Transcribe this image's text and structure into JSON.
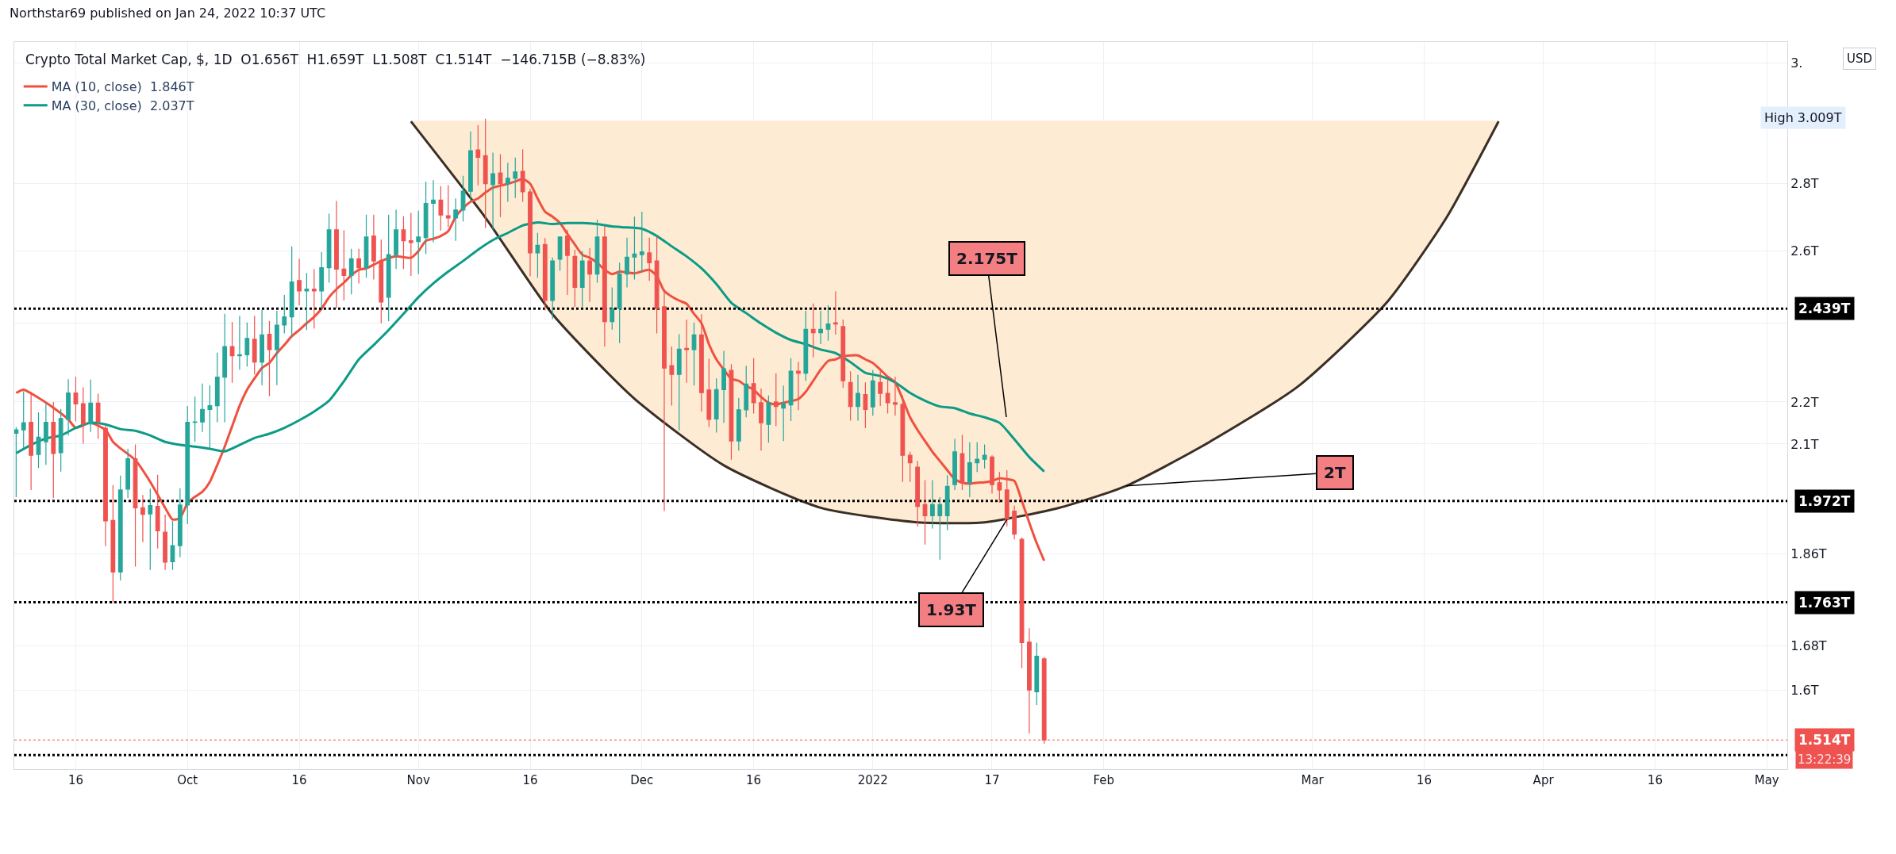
{
  "chart_data": {
    "type": "candlestick",
    "title": "Crypto Total Market Cap, $, 1D  O1.656T  H1.659T  L1.508T  C1.514T  −146.715B (−8.83%)",
    "colors": [
      "#26a69a",
      "#26a69a",
      "#ef5350",
      "#26a69a",
      "#26a69a",
      "#ef5350",
      "#26a69a",
      "#26a69a",
      "#ef5350",
      "#ef5350",
      "#26a69a",
      "#ef5350",
      "#ef5350",
      "#ef5350",
      "#26a69a",
      "#26a69a",
      "#ef5350",
      "#ef5350",
      "#26a69a",
      "#ef5350",
      "#ef5350",
      "#26a69a",
      "#26a69a",
      "#26a69a",
      "#26a69a",
      "#26a69a",
      "#26a69a",
      "#26a69a",
      "#26a69a",
      "#ef5350",
      "#26a69a",
      "#26a69a",
      "#ef5350",
      "#26a69a",
      "#ef5350",
      "#26a69a",
      "#26a69a",
      "#26a69a",
      "#ef5350",
      "#26a69a",
      "#ef5350",
      "#26a69a",
      "#26a69a",
      "#ef5350",
      "#ef5350",
      "#26a69a",
      "#ef5350",
      "#26a69a",
      "#ef5350",
      "#ef5350",
      "#26a69a",
      "#26a69a",
      "#ef5350",
      "#ef5350",
      "#26a69a",
      "#26a69a",
      "#26a69a",
      "#ef5350",
      "#ef5350",
      "#26a69a",
      "#26a69a",
      "#26a69a",
      "#ef5350",
      "#ef5350",
      "#26a69a",
      "#ef5350",
      "#26a69a",
      "#26a69a",
      "#ef5350",
      "#ef5350",
      "#26a69a",
      "#ef5350",
      "#26a69a",
      "#26a69a",
      "#ef5350",
      "#ef5350",
      "#26a69a",
      "#ef5350",
      "#26a69a",
      "#ef5350",
      "#26a69a",
      "#26a69a",
      "#26a69a",
      "#26a69a",
      "#26a69a",
      "#ef5350",
      "#ef5350",
      "#ef5350",
      "#ef5350",
      "#26a69a",
      "#ef5350",
      "#26a69a",
      "#ef5350",
      "#ef5350",
      "#26a69a",
      "#26a69a",
      "#ef5350",
      "#26a69a",
      "#26a69a",
      "#ef5350",
      "#ef5350",
      "#26a69a",
      "#ef5350",
      "#26a69a",
      "#26a69a",
      "#ef5350",
      "#26a69a",
      "#ef5350",
      "#26a69a",
      "#26a69a",
      "#ef5350",
      "#ef5350",
      "#ef5350",
      "#26a69a",
      "#ef5350",
      "#26a69a",
      "#ef5350",
      "#ef5350",
      "#ef5350",
      "#ef5350",
      "#ef5350",
      "#ef5350",
      "#ef5350",
      "#26a69a",
      "#26a69a",
      "#26a69a",
      "#26a69a",
      "#ef5350",
      "#26a69a",
      "#26a69a",
      "#26a69a",
      "#ef5350",
      "#ef5350",
      "#ef5350",
      "#ef5350",
      "#ef5350",
      "#ef5350",
      "#26a69a",
      "#ef5350"
    ],
    "x": [
      "2021-09-08",
      "2021-09-09",
      "2021-09-10",
      "2021-09-11",
      "2021-09-12",
      "2021-09-13",
      "2021-09-14",
      "2021-09-15",
      "2021-09-16",
      "2021-09-17",
      "2021-09-18",
      "2021-09-19",
      "2021-09-20",
      "2021-09-21",
      "2021-09-22",
      "2021-09-23",
      "2021-09-24",
      "2021-09-25",
      "2021-09-26",
      "2021-09-27",
      "2021-09-28",
      "2021-09-29",
      "2021-09-30",
      "2021-10-01",
      "2021-10-02",
      "2021-10-03",
      "2021-10-04",
      "2021-10-05",
      "2021-10-06",
      "2021-10-07",
      "2021-10-08",
      "2021-10-09",
      "2021-10-10",
      "2021-10-11",
      "2021-10-12",
      "2021-10-13",
      "2021-10-14",
      "2021-10-15",
      "2021-10-16",
      "2021-10-17",
      "2021-10-18",
      "2021-10-19",
      "2021-10-20",
      "2021-10-21",
      "2021-10-22",
      "2021-10-23",
      "2021-10-24",
      "2021-10-25",
      "2021-10-26",
      "2021-10-27",
      "2021-10-28",
      "2021-10-29",
      "2021-10-30",
      "2021-10-31",
      "2021-11-01",
      "2021-11-02",
      "2021-11-03",
      "2021-11-04",
      "2021-11-05",
      "2021-11-06",
      "2021-11-07",
      "2021-11-08",
      "2021-11-09",
      "2021-11-10",
      "2021-11-11",
      "2021-11-12",
      "2021-11-13",
      "2021-11-14",
      "2021-11-15",
      "2021-11-16",
      "2021-11-17",
      "2021-11-18",
      "2021-11-19",
      "2021-11-20",
      "2021-11-21",
      "2021-11-22",
      "2021-11-23",
      "2021-11-24",
      "2021-11-25",
      "2021-11-26",
      "2021-11-27",
      "2021-11-28",
      "2021-11-29",
      "2021-11-30",
      "2021-12-01",
      "2021-12-02",
      "2021-12-03",
      "2021-12-04",
      "2021-12-05",
      "2021-12-06",
      "2021-12-07",
      "2021-12-08",
      "2021-12-09",
      "2021-12-10",
      "2021-12-11",
      "2021-12-12",
      "2021-12-13",
      "2021-12-14",
      "2021-12-15",
      "2021-12-16",
      "2021-12-17",
      "2021-12-18",
      "2021-12-19",
      "2021-12-20",
      "2021-12-21",
      "2021-12-22",
      "2021-12-23",
      "2021-12-24",
      "2021-12-25",
      "2021-12-26",
      "2021-12-27",
      "2021-12-28",
      "2021-12-29",
      "2021-12-30",
      "2021-12-31",
      "2022-01-01",
      "2022-01-02",
      "2022-01-03",
      "2022-01-04",
      "2022-01-05",
      "2022-01-06",
      "2022-01-07",
      "2022-01-08",
      "2022-01-09",
      "2022-01-10",
      "2022-01-11",
      "2022-01-12",
      "2022-01-13",
      "2022-01-14",
      "2022-01-15",
      "2022-01-16",
      "2022-01-17",
      "2022-01-18",
      "2022-01-19",
      "2022-01-20",
      "2022-01-21",
      "2022-01-22",
      "2022-01-23",
      "2022-01-24"
    ],
    "ohlc": [
      [
        2.125,
        2.14,
        1.98,
        2.133
      ],
      [
        2.133,
        2.226,
        2.09,
        2.15
      ],
      [
        2.151,
        2.225,
        1.996,
        2.074
      ],
      [
        2.076,
        2.175,
        2.045,
        2.116
      ],
      [
        2.105,
        2.197,
        2.052,
        2.151
      ],
      [
        2.151,
        2.2,
        1.978,
        2.078
      ],
      [
        2.08,
        2.183,
        2.037,
        2.16
      ],
      [
        2.158,
        2.256,
        2.12,
        2.222
      ],
      [
        2.222,
        2.262,
        2.153,
        2.195
      ],
      [
        2.196,
        2.236,
        2.101,
        2.147
      ],
      [
        2.147,
        2.255,
        2.128,
        2.197
      ],
      [
        2.197,
        2.22,
        2.112,
        2.153
      ],
      [
        2.137,
        2.145,
        1.876,
        1.929
      ],
      [
        1.93,
        2.007,
        1.761,
        1.823
      ],
      [
        1.823,
        2.028,
        1.806,
        1.996
      ],
      [
        1.998,
        2.089,
        1.978,
        2.066
      ],
      [
        2.066,
        2.099,
        1.834,
        1.957
      ],
      [
        1.957,
        1.985,
        1.884,
        1.943
      ],
      [
        1.944,
        1.999,
        1.827,
        1.962
      ],
      [
        1.96,
        2.03,
        1.871,
        1.908
      ],
      [
        1.905,
        1.943,
        1.827,
        1.843
      ],
      [
        1.844,
        1.929,
        1.827,
        1.877
      ],
      [
        1.877,
        2.0,
        1.853,
        1.963
      ],
      [
        1.963,
        2.19,
        1.922,
        2.151
      ],
      [
        2.151,
        2.213,
        2.105,
        2.152
      ],
      [
        2.152,
        2.245,
        2.128,
        2.182
      ],
      [
        2.182,
        2.241,
        2.09,
        2.191
      ],
      [
        2.191,
        2.323,
        2.151,
        2.261
      ],
      [
        2.261,
        2.425,
        2.151,
        2.339
      ],
      [
        2.339,
        2.403,
        2.247,
        2.315
      ],
      [
        2.315,
        2.42,
        2.28,
        2.318
      ],
      [
        2.318,
        2.402,
        2.288,
        2.36
      ],
      [
        2.358,
        2.42,
        2.268,
        2.299
      ],
      [
        2.299,
        2.436,
        2.241,
        2.369
      ],
      [
        2.371,
        2.406,
        2.214,
        2.331
      ],
      [
        2.331,
        2.433,
        2.241,
        2.395
      ],
      [
        2.395,
        2.476,
        2.373,
        2.417
      ],
      [
        2.417,
        2.613,
        2.363,
        2.512
      ],
      [
        2.516,
        2.577,
        2.448,
        2.487
      ],
      [
        2.487,
        2.537,
        2.382,
        2.492
      ],
      [
        2.492,
        2.548,
        2.386,
        2.487
      ],
      [
        2.487,
        2.596,
        2.44,
        2.552
      ],
      [
        2.552,
        2.709,
        2.51,
        2.661
      ],
      [
        2.661,
        2.747,
        2.44,
        2.548
      ],
      [
        2.548,
        2.66,
        2.461,
        2.53
      ],
      [
        2.53,
        2.606,
        2.478,
        2.577
      ],
      [
        2.577,
        2.606,
        2.508,
        2.552
      ],
      [
        2.552,
        2.706,
        2.524,
        2.64
      ],
      [
        2.643,
        2.706,
        2.519,
        2.571
      ],
      [
        2.571,
        2.633,
        2.4,
        2.457
      ],
      [
        2.47,
        2.706,
        2.405,
        2.589
      ],
      [
        2.589,
        2.721,
        2.548,
        2.661
      ],
      [
        2.661,
        2.701,
        2.548,
        2.629
      ],
      [
        2.629,
        2.711,
        2.529,
        2.624
      ],
      [
        2.627,
        2.718,
        2.534,
        2.64
      ],
      [
        2.638,
        2.806,
        2.591,
        2.74
      ],
      [
        2.74,
        2.811,
        2.624,
        2.75
      ],
      [
        2.75,
        2.793,
        2.659,
        2.705
      ],
      [
        2.703,
        2.796,
        2.669,
        2.696
      ],
      [
        2.696,
        2.755,
        2.629,
        2.72
      ],
      [
        2.72,
        2.825,
        2.686,
        2.777
      ],
      [
        2.777,
        2.967,
        2.745,
        2.904
      ],
      [
        2.907,
        2.988,
        2.795,
        2.883
      ],
      [
        2.888,
        3.009,
        2.666,
        2.8
      ],
      [
        2.797,
        2.898,
        2.661,
        2.831
      ],
      [
        2.834,
        2.893,
        2.699,
        2.8
      ],
      [
        2.8,
        2.866,
        2.745,
        2.817
      ],
      [
        2.817,
        2.882,
        2.756,
        2.837
      ],
      [
        2.839,
        2.909,
        2.745,
        2.775
      ],
      [
        2.775,
        2.785,
        2.528,
        2.594
      ],
      [
        2.594,
        2.652,
        2.524,
        2.616
      ],
      [
        2.618,
        2.637,
        2.434,
        2.461
      ],
      [
        2.461,
        2.581,
        2.411,
        2.571
      ],
      [
        2.576,
        2.642,
        2.543,
        2.64
      ],
      [
        2.643,
        2.661,
        2.476,
        2.587
      ],
      [
        2.584,
        2.603,
        2.444,
        2.497
      ],
      [
        2.497,
        2.599,
        2.444,
        2.571
      ],
      [
        2.571,
        2.608,
        2.457,
        2.534
      ],
      [
        2.534,
        2.691,
        2.51,
        2.64
      ],
      [
        2.64,
        2.671,
        2.339,
        2.404
      ],
      [
        2.404,
        2.497,
        2.383,
        2.439
      ],
      [
        2.439,
        2.566,
        2.348,
        2.534
      ],
      [
        2.534,
        2.638,
        2.497,
        2.582
      ],
      [
        2.582,
        2.7,
        2.519,
        2.591
      ],
      [
        2.589,
        2.715,
        2.538,
        2.597
      ],
      [
        2.594,
        2.638,
        2.515,
        2.566
      ],
      [
        2.571,
        2.642,
        2.373,
        2.439
      ],
      [
        2.444,
        2.492,
        1.95,
        2.284
      ],
      [
        2.29,
        2.339,
        2.191,
        2.268
      ],
      [
        2.268,
        2.371,
        2.132,
        2.332
      ],
      [
        2.334,
        2.41,
        2.247,
        2.331
      ],
      [
        2.331,
        2.402,
        2.24,
        2.369
      ],
      [
        2.369,
        2.424,
        2.177,
        2.223
      ],
      [
        2.229,
        2.308,
        2.14,
        2.158
      ],
      [
        2.159,
        2.258,
        2.127,
        2.23
      ],
      [
        2.23,
        2.328,
        2.15,
        2.282
      ],
      [
        2.278,
        2.294,
        2.064,
        2.107
      ],
      [
        2.107,
        2.21,
        2.085,
        2.181
      ],
      [
        2.181,
        2.29,
        2.163,
        2.244
      ],
      [
        2.245,
        2.309,
        2.172,
        2.198
      ],
      [
        2.198,
        2.233,
        2.085,
        2.15
      ],
      [
        2.146,
        2.216,
        2.103,
        2.198
      ],
      [
        2.2,
        2.271,
        2.142,
        2.189
      ],
      [
        2.185,
        2.24,
        2.107,
        2.196
      ],
      [
        2.193,
        2.309,
        2.154,
        2.276
      ],
      [
        2.276,
        2.3,
        2.18,
        2.271
      ],
      [
        2.271,
        2.433,
        2.252,
        2.384
      ],
      [
        2.384,
        2.453,
        2.311,
        2.375
      ],
      [
        2.375,
        2.433,
        2.345,
        2.384
      ],
      [
        2.384,
        2.448,
        2.354,
        2.398
      ],
      [
        2.401,
        2.486,
        2.37,
        2.398
      ],
      [
        2.391,
        2.41,
        2.235,
        2.252
      ],
      [
        2.248,
        2.276,
        2.155,
        2.189
      ],
      [
        2.189,
        2.267,
        2.155,
        2.221
      ],
      [
        2.218,
        2.248,
        2.137,
        2.182
      ],
      [
        2.188,
        2.279,
        2.167,
        2.252
      ],
      [
        2.248,
        2.276,
        2.19,
        2.221
      ],
      [
        2.221,
        2.257,
        2.172,
        2.198
      ],
      [
        2.198,
        2.262,
        2.167,
        2.194
      ],
      [
        2.194,
        2.216,
        2.014,
        2.074
      ],
      [
        2.074,
        2.082,
        2.014,
        2.057
      ],
      [
        2.047,
        2.061,
        1.917,
        1.96
      ],
      [
        1.964,
        2.018,
        1.879,
        1.94
      ],
      [
        1.94,
        2.018,
        1.913,
        1.964
      ],
      [
        1.94,
        1.98,
        1.848,
        1.964
      ],
      [
        1.94,
        2.029,
        1.909,
        2.004
      ],
      [
        2.008,
        2.112,
        1.996,
        2.082
      ],
      [
        2.078,
        2.121,
        1.996,
        2.012
      ],
      [
        2.012,
        2.104,
        1.98,
        2.057
      ],
      [
        2.057,
        2.104,
        2.036,
        2.065
      ],
      [
        2.065,
        2.099,
        2.044,
        2.074
      ],
      [
        2.07,
        2.074,
        1.988,
        2.008
      ],
      [
        2.012,
        2.036,
        1.968,
        1.996
      ],
      [
        1.996,
        2.04,
        1.917,
        1.932
      ],
      [
        1.95,
        1.962,
        1.89,
        1.901
      ],
      [
        1.89,
        1.894,
        1.639,
        1.686
      ],
      [
        1.687,
        1.713,
        1.525,
        1.6
      ],
      [
        1.597,
        1.686,
        1.574,
        1.661
      ],
      [
        1.656,
        1.659,
        1.508,
        1.514
      ]
    ],
    "series": [
      {
        "type": "line",
        "color": "#3b2f25",
        "x": [
          "2021-10-31",
          "2021-11-10",
          "2021-11-19",
          "2021-11-30",
          "2021-12-12",
          "2021-12-25",
          "2022-01-07",
          "2022-01-16",
          "2022-01-26",
          "2022-02-04",
          "2022-02-14",
          "2022-02-27",
          "2022-03-11",
          "2022-03-19",
          "2022-03-26"
        ],
        "values": [
          3.0,
          2.697,
          2.424,
          2.208,
          2.051,
          1.957,
          1.926,
          1.926,
          1.957,
          2.005,
          2.093,
          2.237,
          2.456,
          2.697,
          3.0
        ]
      },
      {
        "type": "area",
        "color": "#fdebd3",
        "x": [
          "2021-10-31",
          "2021-11-10",
          "2021-11-19",
          "2021-11-30",
          "2021-12-12",
          "2021-12-25",
          "2022-01-07",
          "2022-01-16",
          "2022-01-26",
          "2022-02-04",
          "2022-02-14",
          "2022-02-27",
          "2022-03-11",
          "2022-03-19",
          "2022-03-26"
        ],
        "values": [
          3.0,
          3.0,
          3.0,
          3.0,
          3.0,
          3.0,
          3.0,
          3.0,
          3.0,
          3.0,
          3.0,
          3.0,
          3.0,
          3.0,
          3.0
        ]
      },
      {
        "type": "line",
        "name": "MA (10, close)  1.846T",
        "color": "#f0513f",
        "x": [
          "2021-09-08",
          "2021-09-09",
          "2021-09-11",
          "2021-09-13",
          "2021-09-15",
          "2021-09-16",
          "2021-09-18",
          "2021-09-20",
          "2021-09-21",
          "2021-09-22",
          "2021-09-24",
          "2021-09-26",
          "2021-09-28",
          "2021-09-29",
          "2021-09-30",
          "2021-10-01",
          "2021-10-02",
          "2021-10-03",
          "2021-10-04",
          "2021-10-05",
          "2021-10-06",
          "2021-10-07",
          "2021-10-08",
          "2021-10-09",
          "2021-10-10",
          "2021-10-11",
          "2021-10-12",
          "2021-10-13",
          "2021-10-14",
          "2021-10-15",
          "2021-10-16",
          "2021-10-17",
          "2021-10-18",
          "2021-10-19",
          "2021-10-20",
          "2021-10-21",
          "2021-10-22",
          "2021-10-23",
          "2021-10-24",
          "2021-10-25",
          "2021-10-27",
          "2021-10-29",
          "2021-10-31",
          "2021-11-01",
          "2021-11-02",
          "2021-11-03",
          "2021-11-04",
          "2021-11-05",
          "2021-11-06",
          "2021-11-07",
          "2021-11-08",
          "2021-11-09",
          "2021-11-10",
          "2021-11-11",
          "2021-11-12",
          "2021-11-13",
          "2021-11-14",
          "2021-11-15",
          "2021-11-16",
          "2021-11-17",
          "2021-11-18",
          "2021-11-19",
          "2021-11-20",
          "2021-11-21",
          "2021-11-22",
          "2021-11-23",
          "2021-11-24",
          "2021-11-25",
          "2021-11-26",
          "2021-11-27",
          "2021-11-28",
          "2021-11-30",
          "2021-12-02",
          "2021-12-03",
          "2021-12-04",
          "2021-12-05",
          "2021-12-06",
          "2021-12-07",
          "2021-12-08",
          "2021-12-09",
          "2021-12-10",
          "2021-12-11",
          "2021-12-12",
          "2021-12-13",
          "2021-12-14",
          "2021-12-15",
          "2021-12-16",
          "2021-12-17",
          "2021-12-18",
          "2021-12-19",
          "2021-12-20",
          "2021-12-21",
          "2021-12-22",
          "2021-12-23",
          "2021-12-24",
          "2021-12-25",
          "2021-12-26",
          "2021-12-27",
          "2021-12-28",
          "2021-12-29",
          "2021-12-30",
          "2021-12-31",
          "2022-01-01",
          "2022-01-02",
          "2022-01-03",
          "2022-01-04",
          "2022-01-05",
          "2022-01-06",
          "2022-01-07",
          "2022-01-08",
          "2022-01-09",
          "2022-01-10",
          "2022-01-11",
          "2022-01-12",
          "2022-01-13",
          "2022-01-14",
          "2022-01-15",
          "2022-01-16",
          "2022-01-17",
          "2022-01-18",
          "2022-01-19",
          "2022-01-20",
          "2022-01-21",
          "2022-01-22",
          "2022-01-23",
          "2022-01-24"
        ],
        "values": [
          2.222,
          2.23,
          2.21,
          2.186,
          2.158,
          2.138,
          2.15,
          2.133,
          2.105,
          2.09,
          2.063,
          2.014,
          1.957,
          1.932,
          1.935,
          1.967,
          1.981,
          1.992,
          2.014,
          2.052,
          2.094,
          2.142,
          2.191,
          2.23,
          2.258,
          2.284,
          2.297,
          2.322,
          2.343,
          2.366,
          2.382,
          2.4,
          2.417,
          2.439,
          2.47,
          2.492,
          2.51,
          2.531,
          2.546,
          2.55,
          2.571,
          2.584,
          2.58,
          2.599,
          2.629,
          2.635,
          2.643,
          2.657,
          2.7,
          2.726,
          2.745,
          2.755,
          2.773,
          2.788,
          2.794,
          2.8,
          2.807,
          2.815,
          2.8,
          2.755,
          2.715,
          2.7,
          2.681,
          2.649,
          2.618,
          2.589,
          2.58,
          2.566,
          2.546,
          2.534,
          2.541,
          2.536,
          2.546,
          2.528,
          2.487,
          2.472,
          2.461,
          2.452,
          2.425,
          2.4,
          2.345,
          2.306,
          2.28,
          2.257,
          2.252,
          2.239,
          2.23,
          2.212,
          2.198,
          2.194,
          2.198,
          2.202,
          2.207,
          2.225,
          2.252,
          2.28,
          2.302,
          2.306,
          2.314,
          2.316,
          2.316,
          2.306,
          2.297,
          2.28,
          2.262,
          2.248,
          2.207,
          2.163,
          2.133,
          2.107,
          2.082,
          2.061,
          2.04,
          2.02,
          2.012,
          2.01,
          2.012,
          2.013,
          2.016,
          2.022,
          2.02,
          2.016,
          1.972,
          1.925,
          1.882,
          1.846
        ]
      },
      {
        "type": "line",
        "name": "MA (30, close)  2.037T",
        "color": "#0b9b86",
        "x": [
          "2021-09-08",
          "2021-09-10",
          "2021-09-12",
          "2021-09-14",
          "2021-09-16",
          "2021-09-18",
          "2021-09-20",
          "2021-09-22",
          "2021-09-24",
          "2021-09-26",
          "2021-09-28",
          "2021-09-30",
          "2021-10-02",
          "2021-10-04",
          "2021-10-06",
          "2021-10-08",
          "2021-10-10",
          "2021-10-12",
          "2021-10-14",
          "2021-10-16",
          "2021-10-18",
          "2021-10-20",
          "2021-10-22",
          "2021-10-24",
          "2021-10-26",
          "2021-10-28",
          "2021-10-30",
          "2021-11-01",
          "2021-11-03",
          "2021-11-05",
          "2021-11-07",
          "2021-11-09",
          "2021-11-11",
          "2021-11-13",
          "2021-11-15",
          "2021-11-17",
          "2021-11-19",
          "2021-11-21",
          "2021-11-23",
          "2021-11-25",
          "2021-11-27",
          "2021-11-29",
          "2021-12-01",
          "2021-12-03",
          "2021-12-05",
          "2021-12-07",
          "2021-12-09",
          "2021-12-11",
          "2021-12-13",
          "2021-12-15",
          "2021-12-17",
          "2021-12-19",
          "2021-12-21",
          "2021-12-23",
          "2021-12-25",
          "2021-12-27",
          "2021-12-29",
          "2021-12-31",
          "2022-01-02",
          "2022-01-04",
          "2022-01-06",
          "2022-01-08",
          "2022-01-10",
          "2022-01-12",
          "2022-01-14",
          "2022-01-16",
          "2022-01-18",
          "2022-01-20",
          "2022-01-22",
          "2022-01-24"
        ],
        "values": [
          2.079,
          2.098,
          2.113,
          2.12,
          2.138,
          2.15,
          2.146,
          2.135,
          2.131,
          2.12,
          2.105,
          2.098,
          2.094,
          2.089,
          2.083,
          2.098,
          2.114,
          2.124,
          2.138,
          2.156,
          2.177,
          2.203,
          2.251,
          2.306,
          2.343,
          2.382,
          2.425,
          2.47,
          2.508,
          2.541,
          2.571,
          2.603,
          2.631,
          2.652,
          2.674,
          2.683,
          2.678,
          2.681,
          2.681,
          2.678,
          2.671,
          2.668,
          2.664,
          2.643,
          2.613,
          2.584,
          2.55,
          2.506,
          2.455,
          2.427,
          2.399,
          2.375,
          2.356,
          2.345,
          2.331,
          2.322,
          2.299,
          2.272,
          2.264,
          2.248,
          2.222,
          2.203,
          2.189,
          2.185,
          2.172,
          2.163,
          2.15,
          2.111,
          2.07,
          2.037
        ]
      }
    ],
    "log": "y",
    "grid": true,
    "legend": "top left",
    "xlim": [
      "2021-09-07T18:00",
      "2022-05-03T18:00"
    ],
    "xticks": [
      {
        "value": "2021-09-16",
        "label": "16"
      },
      {
        "value": "2021-10-01",
        "label": "Oct"
      },
      {
        "value": "2021-10-16",
        "label": "16"
      },
      {
        "value": "2021-11-01",
        "label": "Nov"
      },
      {
        "value": "2021-11-16",
        "label": "16"
      },
      {
        "value": "2021-12-01",
        "label": "Dec"
      },
      {
        "value": "2021-12-16",
        "label": "16"
      },
      {
        "value": "2022-01-01",
        "label": "2022"
      },
      {
        "value": "2022-01-17",
        "label": "17"
      },
      {
        "value": "2022-02-01",
        "label": "Feb"
      },
      {
        "value": "2022-03-01",
        "label": "Mar"
      },
      {
        "value": "2022-03-16",
        "label": "16"
      },
      {
        "value": "2022-04-01",
        "label": "Apr"
      },
      {
        "value": "2022-04-16",
        "label": "16"
      },
      {
        "value": "2022-05-01",
        "label": "May"
      }
    ],
    "ylim": [
      1.466,
      3.275
    ],
    "yticks": [
      {
        "value": 1.6,
        "label": "1.6T"
      },
      {
        "value": 1.68,
        "label": "1.68T"
      },
      {
        "value": 1.86,
        "label": "1.86T"
      },
      {
        "value": 2.1,
        "label": "2.1T"
      },
      {
        "value": 2.2,
        "label": "2.2T"
      },
      {
        "value": 2.4,
        "label": null
      },
      {
        "value": 2.6,
        "label": "2.6T"
      },
      {
        "value": 2.8,
        "label": "2.8T"
      },
      {
        "value": 3.2,
        "label": "3."
      }
    ],
    "ref_lines": [
      {
        "axis": "y",
        "value": 2.439,
        "label": "2.439T",
        "color": "#000000",
        "line_style": "dotted"
      },
      {
        "axis": "y",
        "value": 1.972,
        "label": "1.972T",
        "color": "#000000",
        "line_style": "dotted"
      },
      {
        "axis": "y",
        "value": 1.763,
        "label": "1.763T",
        "color": "#000000",
        "line_style": "dotted"
      },
      {
        "axis": "y",
        "value": 1.489,
        "label": null,
        "color": "#000000",
        "line_style": "dotted"
      },
      {
        "axis": "y",
        "value": 1.514,
        "label": "1.514T",
        "color": "#ef5350",
        "line_style": "dotted"
      }
    ],
    "annotations": [
      "Northstar69 published on Jan 24, 2022 10:37 UTC",
      "USD",
      "13:22:39",
      "High 3.009T",
      "2.175T",
      {
        "text": "2T",
        "x": "2022-02-04",
        "y": 2.005
      },
      {
        "text": "1.93T",
        "x": "2022-01-19",
        "y": 1.932
      }
    ]
  }
}
